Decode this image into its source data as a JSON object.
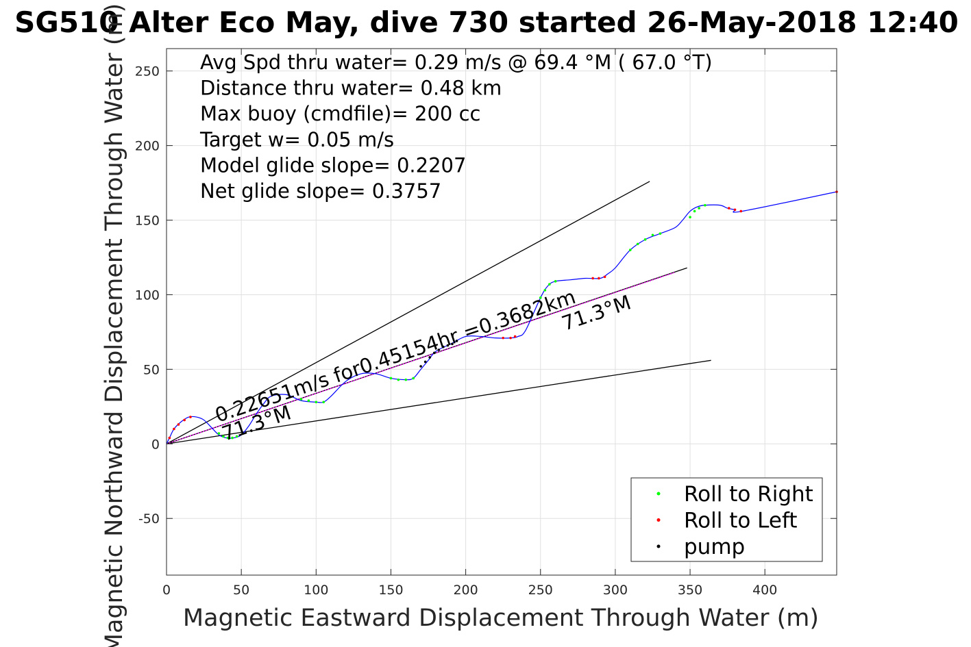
{
  "chart_data": {
    "type": "line",
    "title": "SG510 Alter Eco May, dive 730 started 26-May-2018 12:40",
    "xlabel": "Magnetic Eastward Displacement Through Water (m)",
    "ylabel": "Magnetic Northward Displacement Through Water (m)",
    "xlim": [
      0,
      448
    ],
    "ylim": [
      -88,
      265
    ],
    "xticks": [
      0,
      50,
      100,
      150,
      200,
      250,
      300,
      350,
      400
    ],
    "yticks": [
      -50,
      0,
      50,
      100,
      150,
      200,
      250
    ],
    "grid": true,
    "info_lines": [
      "Avg Spd thru water=  0.29 m/s @  69.4 °M ( 67.0 °T)",
      "Distance thru water=  0.48 km",
      "Max buoy (cmdfile)= 200 cc",
      "Target w= 0.05 m/s",
      "Model glide slope= 0.2207",
      "Net glide slope= 0.3757"
    ],
    "annotations": [
      "0.22651m/s for0.45154hr =0.3682km",
      "71.3°M",
      "71.3°M"
    ],
    "track": {
      "x": [
        0,
        2,
        5,
        10,
        15,
        20,
        25,
        30,
        35,
        40,
        45,
        50,
        55,
        60,
        65,
        70,
        80,
        90,
        100,
        105,
        110,
        120,
        130,
        140,
        150,
        160,
        165,
        170,
        175,
        180,
        190,
        200,
        210,
        220,
        230,
        235,
        240,
        250,
        255,
        260,
        270,
        280,
        290,
        295,
        300,
        310,
        320,
        330,
        340,
        345,
        350,
        355,
        360,
        370,
        375,
        380,
        385,
        448
      ],
      "y": [
        0,
        4,
        10,
        15,
        18,
        18,
        16,
        11,
        6,
        4,
        4,
        6,
        12,
        20,
        27,
        32,
        33,
        29,
        28,
        28,
        32,
        42,
        47,
        47,
        44,
        43,
        44,
        50,
        56,
        62,
        67,
        72,
        72,
        71,
        71,
        72,
        76,
        98,
        106,
        109,
        110,
        111,
        111,
        114,
        118,
        130,
        137,
        141,
        145,
        150,
        156,
        159,
        160,
        160,
        158,
        157,
        156,
        169
      ]
    },
    "series": [
      {
        "name": "Roll to Right",
        "color": "#00ff00",
        "x": [
          35,
          38,
          41,
          44,
          47,
          90,
          95,
          100,
          105,
          150,
          155,
          160,
          165,
          250,
          253,
          256,
          260,
          310,
          315,
          320,
          325,
          330,
          350,
          353,
          356,
          360
        ],
        "y": [
          7,
          5,
          4,
          4,
          5,
          30,
          29,
          28,
          28,
          44,
          43,
          43,
          44,
          98,
          103,
          107,
          109,
          130,
          134,
          137,
          140,
          141,
          152,
          156,
          158,
          160
        ]
      },
      {
        "name": "Roll to Left",
        "color": "#ff0000",
        "x": [
          2,
          5,
          8,
          12,
          16,
          225,
          230,
          233,
          285,
          289,
          293,
          376,
          380,
          384,
          448
        ],
        "y": [
          4,
          10,
          13,
          16,
          18,
          71,
          71,
          72,
          111,
          111,
          112,
          158,
          157,
          156,
          169
        ]
      },
      {
        "name": "pump",
        "color": "#000000",
        "x": [
          170,
          173,
          176,
          179,
          182,
          185,
          188,
          191,
          194
        ],
        "y": [
          52,
          55,
          58,
          61,
          63,
          65,
          66,
          67,
          69
        ]
      }
    ],
    "heading_line": {
      "color": "#ff00ff",
      "x": [
        0,
        340
      ],
      "y": [
        0,
        115
      ]
    },
    "envelope_lines": [
      {
        "color": "#000000",
        "x": [
          0,
          323
        ],
        "y": [
          0,
          176
        ]
      },
      {
        "color": "#000000",
        "x": [
          0,
          348
        ],
        "y": [
          0,
          118
        ]
      },
      {
        "color": "#000000",
        "x": [
          0,
          364
        ],
        "y": [
          0,
          56
        ]
      }
    ],
    "legend_position": "bottom-right"
  }
}
